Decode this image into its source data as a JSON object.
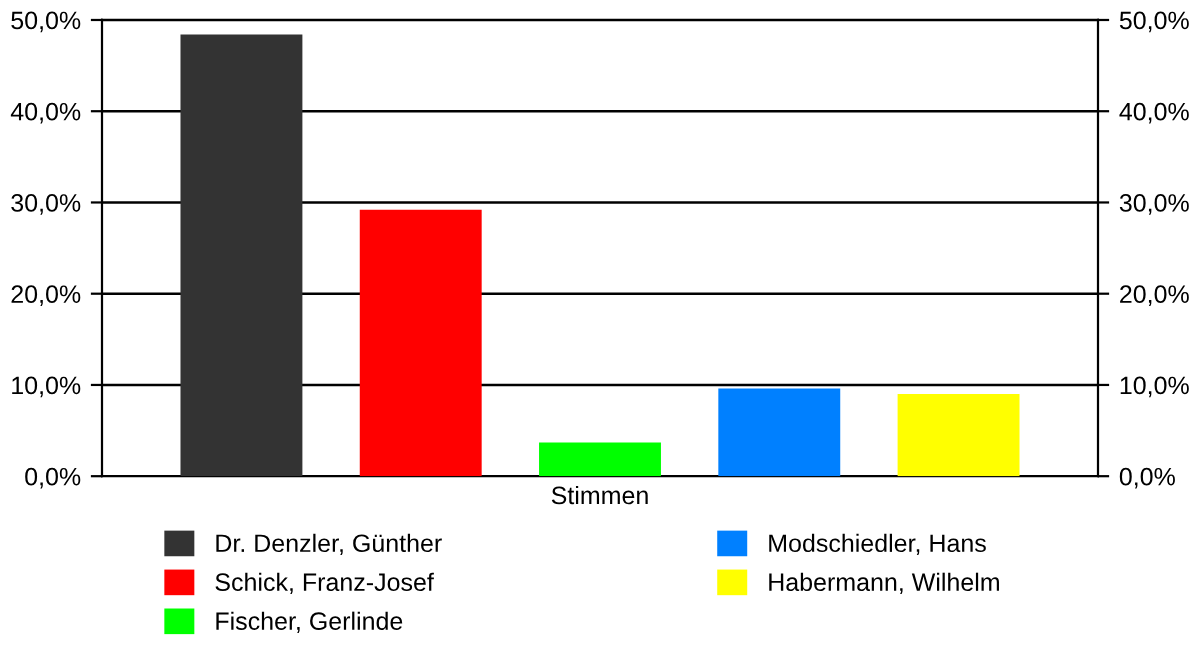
{
  "chart_data": {
    "type": "bar",
    "categories": [
      "Stimmen"
    ],
    "series": [
      {
        "name": "Dr. Denzler, Günther",
        "color": "#333333",
        "values": [
          48.4
        ]
      },
      {
        "name": "Schick, Franz-Josef",
        "color": "#ff0000",
        "values": [
          29.2
        ]
      },
      {
        "name": "Fischer, Gerlinde",
        "color": "#00ff00",
        "values": [
          3.7
        ]
      },
      {
        "name": "Modschiedler, Hans",
        "color": "#0080ff",
        "values": [
          9.6
        ]
      },
      {
        "name": "Habermann, Wilhelm",
        "color": "#ffff00",
        "values": [
          9.0
        ]
      }
    ],
    "ylim": [
      0,
      50
    ],
    "yticks": [
      {
        "value": 0,
        "label": "0,0%"
      },
      {
        "value": 10,
        "label": "10,0%"
      },
      {
        "value": 20,
        "label": "20,0%"
      },
      {
        "value": 30,
        "label": "30,0%"
      },
      {
        "value": 40,
        "label": "40,0%"
      },
      {
        "value": 50,
        "label": "50,0%"
      }
    ],
    "grid": "y",
    "legend": "bottom"
  }
}
